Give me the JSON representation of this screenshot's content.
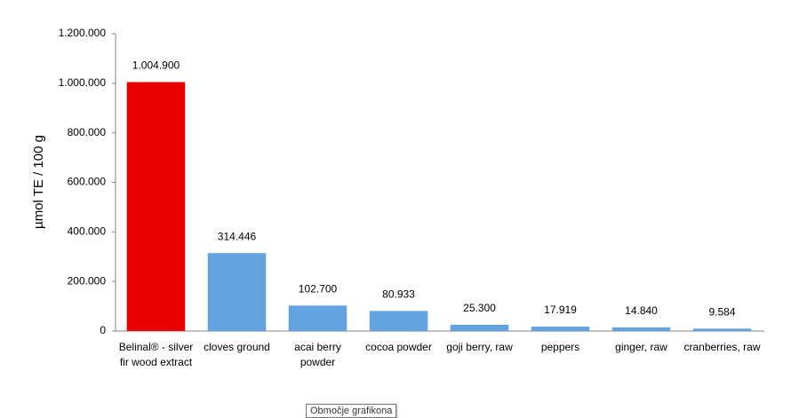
{
  "chart_data": {
    "type": "bar",
    "y_label": "µmol TE / 100 g",
    "categories": [
      "Belinal® - silver fir wood extract",
      "cloves ground",
      "acai berry powder",
      "cocoa powder",
      "goji berry, raw",
      "peppers",
      "ginger, raw",
      "cranberries, raw"
    ],
    "values": [
      1004900,
      314446,
      102700,
      80933,
      25300,
      17919,
      14840,
      9584
    ],
    "value_labels": [
      "1.004.900",
      "314.446",
      "102.700",
      "80.933",
      "25.300",
      "17.919",
      "14.840",
      "9.584"
    ],
    "colors": [
      "#e60000",
      "#62a3e0",
      "#62a3e0",
      "#62a3e0",
      "#62a3e0",
      "#62a3e0",
      "#62a3e0",
      "#62a3e0"
    ],
    "ylim": [
      0,
      1200000
    ],
    "yticks": [
      0,
      {
        "value": 200000,
        "label": "200.000"
      },
      {
        "value": 400000,
        "label": "400.000"
      },
      {
        "value": 600000,
        "label": "600.000"
      },
      {
        "value": 800000,
        "label": "800.000"
      },
      {
        "value": 1000000,
        "label": "1.000.000"
      },
      {
        "value": 1200000,
        "label": "1.200.000"
      }
    ],
    "grid": false,
    "tooltip": "Območje grafikona"
  }
}
